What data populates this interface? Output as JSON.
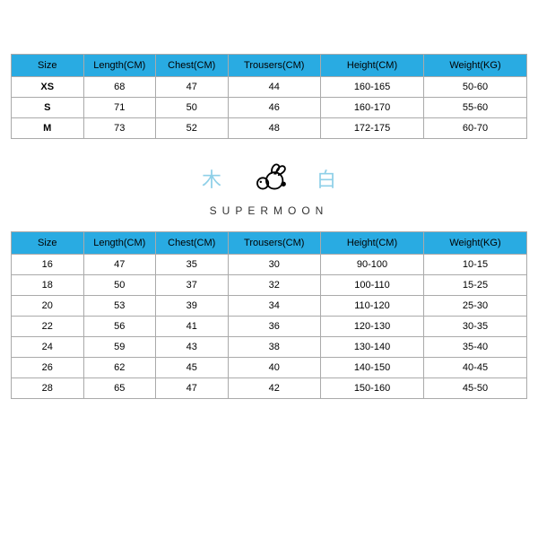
{
  "header_bg_color": "#29abe2",
  "header_text_color": "#000000",
  "border_color": "#aaaaaa",
  "row_bg_color": "#ffffff",
  "columns": [
    {
      "key": "size",
      "label": "Size",
      "class": "col-size"
    },
    {
      "key": "length",
      "label": "Length(CM)",
      "class": "col-length"
    },
    {
      "key": "chest",
      "label": "Chest(CM)",
      "class": "col-chest"
    },
    {
      "key": "trousers",
      "label": "Trousers(CM)",
      "class": "col-trous"
    },
    {
      "key": "height",
      "label": "Height(CM)",
      "class": "col-height"
    },
    {
      "key": "weight",
      "label": "Weight(KG)",
      "class": "col-weight"
    }
  ],
  "table1_rows": [
    {
      "size": "XS",
      "length": "68",
      "chest": "47",
      "trousers": "44",
      "height": "160-165",
      "weight": "50-60"
    },
    {
      "size": "S",
      "length": "71",
      "chest": "50",
      "trousers": "46",
      "height": "160-170",
      "weight": "55-60"
    },
    {
      "size": "M",
      "length": "73",
      "chest": "52",
      "trousers": "48",
      "height": "172-175",
      "weight": "60-70"
    }
  ],
  "table2_rows": [
    {
      "size": "16",
      "length": "47",
      "chest": "35",
      "trousers": "30",
      "height": "90-100",
      "weight": "10-15"
    },
    {
      "size": "18",
      "length": "50",
      "chest": "37",
      "trousers": "32",
      "height": "100-110",
      "weight": "15-25"
    },
    {
      "size": "20",
      "length": "53",
      "chest": "39",
      "trousers": "34",
      "height": "110-120",
      "weight": "25-30"
    },
    {
      "size": "22",
      "length": "56",
      "chest": "41",
      "trousers": "36",
      "height": "120-130",
      "weight": "30-35"
    },
    {
      "size": "24",
      "length": "59",
      "chest": "43",
      "trousers": "38",
      "height": "130-140",
      "weight": "35-40"
    },
    {
      "size": "26",
      "length": "62",
      "chest": "45",
      "trousers": "40",
      "height": "140-150",
      "weight": "40-45"
    },
    {
      "size": "28",
      "length": "65",
      "chest": "47",
      "trousers": "42",
      "height": "150-160",
      "weight": "45-50"
    }
  ],
  "logo": {
    "left_char": "木",
    "right_char": "白",
    "brand": "SUPERMOON",
    "cjk_color": "#8fd0e8",
    "brand_color": "#333333"
  }
}
